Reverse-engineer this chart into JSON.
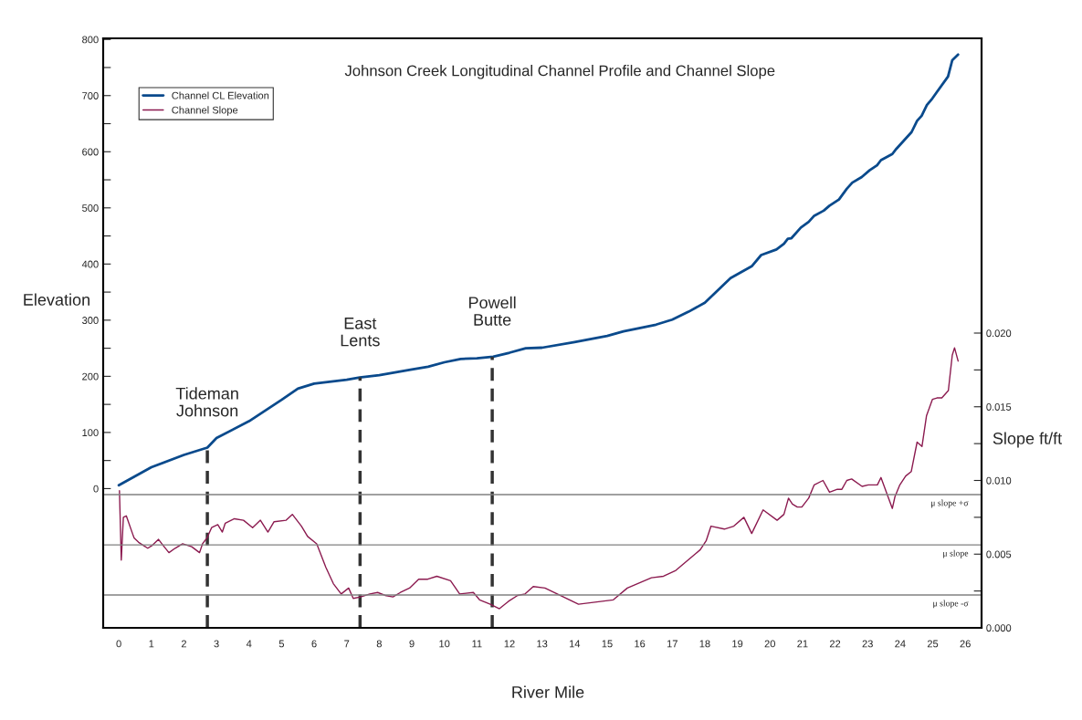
{
  "chart_data": {
    "type": "line",
    "title": "Johnson Creek Longitudinal Channel Profile and Channel Slope",
    "xlabel": "River Mile",
    "ylabel": "Elevation",
    "y2label": "Slope ft/ft",
    "legend": "top left",
    "xlim": [
      -0.48,
      26.5
    ],
    "xticks": [
      0,
      1,
      2,
      3,
      4,
      5,
      6,
      7,
      8,
      9,
      10,
      11,
      12,
      13,
      14,
      15,
      16,
      17,
      18,
      19,
      20,
      21,
      22,
      23,
      24,
      25,
      26
    ],
    "ylim": [
      -248,
      802
    ],
    "yticks": [
      0,
      {
        "value": 50,
        "label": null
      },
      100,
      {
        "value": 150,
        "label": null
      },
      200,
      {
        "value": 250,
        "label": null
      },
      300,
      {
        "value": 350,
        "label": null
      },
      400,
      {
        "value": 450,
        "label": null
      },
      500,
      {
        "value": 550,
        "label": null
      },
      600,
      {
        "value": 650,
        "label": null
      },
      700,
      {
        "value": 750,
        "label": null
      },
      800
    ],
    "y2lim": [
      0,
      0.04
    ],
    "y2ticks": [
      {
        "value": 0,
        "label": "0.000"
      },
      {
        "value": 0.0025,
        "label": null
      },
      {
        "value": 0.005,
        "label": "0.005"
      },
      {
        "value": 0.0075,
        "label": null
      },
      {
        "value": 0.01,
        "label": "0.010"
      },
      {
        "value": 0.0125,
        "label": null
      },
      {
        "value": 0.015,
        "label": "0.015"
      },
      {
        "value": 0.0175,
        "label": null
      },
      {
        "value": 0.02,
        "label": "0.020"
      }
    ],
    "series": [
      {
        "name": "Channel CL Elevation",
        "color": "#0a4a8c",
        "axis": "y",
        "x": [
          0,
          1,
          2,
          2.72,
          3,
          4,
          5,
          5.5,
          6,
          7,
          7.4,
          8,
          9,
          9.5,
          10,
          10.5,
          11,
          11.5,
          12,
          12.5,
          13,
          14,
          15,
          15.5,
          16.5,
          17,
          17.5,
          18,
          18.79,
          19.44,
          19.73,
          20.2,
          20.43,
          20.55,
          20.66,
          20.95,
          21.19,
          21.36,
          21.65,
          21.83,
          22.12,
          22.36,
          22.53,
          22.82,
          23.06,
          23.29,
          23.41,
          23.76,
          23.88,
          24.35,
          24.52,
          24.66,
          24.82,
          24.99,
          25.11,
          25.47,
          25.6,
          25.78
        ],
        "values": [
          6,
          38,
          60,
          73,
          90,
          120,
          158,
          178,
          187,
          194,
          198,
          202,
          212,
          217,
          225,
          231,
          232,
          235,
          242,
          250,
          251,
          261,
          272,
          280,
          292,
          301,
          315,
          331,
          375,
          396,
          416,
          426,
          436,
          445,
          446,
          465,
          475,
          486,
          495,
          504,
          515,
          534,
          545,
          555,
          567,
          576,
          585,
          596,
          605,
          635,
          655,
          664,
          683,
          695,
          705,
          734,
          763,
          773
        ]
      },
      {
        "name": "Channel Slope",
        "color": "#8b1a4f",
        "axis": "y2",
        "x": [
          0.02,
          0.076,
          0.14,
          0.23,
          0.42,
          0.47,
          0.61,
          0.75,
          0.89,
          1.03,
          1.22,
          1.36,
          1.54,
          1.73,
          1.96,
          2.24,
          2.48,
          2.57,
          2.71,
          2.85,
          3.04,
          3.18,
          3.27,
          3.55,
          3.83,
          4.11,
          4.35,
          4.58,
          4.77,
          5.14,
          5.33,
          5.61,
          5.8,
          6.08,
          6.36,
          6.59,
          6.83,
          7.06,
          7.2,
          7.43,
          7.71,
          7.95,
          8.18,
          8.42,
          8.65,
          8.93,
          9.21,
          9.49,
          9.77,
          10.19,
          10.47,
          10.89,
          11.08,
          11.41,
          11.69,
          11.97,
          12.25,
          12.48,
          12.73,
          13.09,
          14.12,
          15.19,
          15.62,
          16.36,
          16.73,
          17.11,
          17.86,
          18.04,
          18.19,
          18.6,
          18.89,
          19.2,
          19.44,
          19.79,
          20.22,
          20.43,
          20.57,
          20.69,
          20.84,
          20.98,
          21.19,
          21.36,
          21.63,
          21.83,
          22.07,
          22.21,
          22.36,
          22.51,
          22.83,
          23.02,
          23.3,
          23.41,
          23.76,
          23.84,
          23.99,
          24.17,
          24.34,
          24.52,
          24.67,
          24.81,
          24.99,
          25.13,
          25.28,
          25.48,
          25.6,
          25.67,
          25.78
        ],
        "values": [
          0.0093,
          0.0046,
          0.0075,
          0.0076,
          0.0064,
          0.0061,
          0.0058,
          0.0056,
          0.0054,
          0.0056,
          0.006,
          0.0056,
          0.0051,
          0.0054,
          0.0057,
          0.0055,
          0.0051,
          0.0057,
          0.0061,
          0.0068,
          0.007,
          0.0065,
          0.0071,
          0.0074,
          0.0073,
          0.0068,
          0.0073,
          0.0065,
          0.0072,
          0.0073,
          0.0077,
          0.0069,
          0.0062,
          0.0057,
          0.0041,
          0.003,
          0.0023,
          0.0027,
          0.002,
          0.0021,
          0.0023,
          0.0024,
          0.0022,
          0.0021,
          0.0024,
          0.0027,
          0.0033,
          0.0033,
          0.0035,
          0.0032,
          0.0023,
          0.0024,
          0.0019,
          0.0016,
          0.0013,
          0.0018,
          0.0022,
          0.0023,
          0.0028,
          0.0027,
          0.0016,
          0.0019,
          0.0027,
          0.0034,
          0.0035,
          0.0039,
          0.0053,
          0.0059,
          0.0069,
          0.0067,
          0.0069,
          0.0075,
          0.0064,
          0.008,
          0.0073,
          0.0077,
          0.0088,
          0.0084,
          0.0082,
          0.0082,
          0.0088,
          0.0097,
          0.01,
          0.0092,
          0.0094,
          0.0094,
          0.01,
          0.0101,
          0.0096,
          0.0097,
          0.0097,
          0.0102,
          0.0081,
          0.0089,
          0.0097,
          0.0103,
          0.0106,
          0.0126,
          0.0123,
          0.0144,
          0.0155,
          0.0156,
          0.0156,
          0.0161,
          0.0185,
          0.019,
          0.0181
        ]
      }
    ],
    "ref_lines": [
      {
        "axis": "x",
        "value": 2.72,
        "label": "Tideman\nJohnson",
        "color": "#333333",
        "line_style": "dashed"
      },
      {
        "axis": "x",
        "value": 7.41,
        "label": "East\nLents",
        "color": "#333333",
        "line_style": "dashed"
      },
      {
        "axis": "x",
        "value": 11.47,
        "label": "Powell\nButte",
        "color": "#333333",
        "line_style": "dashed"
      },
      {
        "axis": "y2",
        "value": 0.00904,
        "label": "μ slope +σ",
        "color": "#808080",
        "line_style": "solid"
      },
      {
        "axis": "y2",
        "value": 0.00563,
        "label": "μ slope",
        "color": "#808080",
        "line_style": "solid"
      },
      {
        "axis": "y2",
        "value": 0.00223,
        "label": "μ slope -σ",
        "color": "#808080",
        "line_style": "solid"
      }
    ]
  }
}
